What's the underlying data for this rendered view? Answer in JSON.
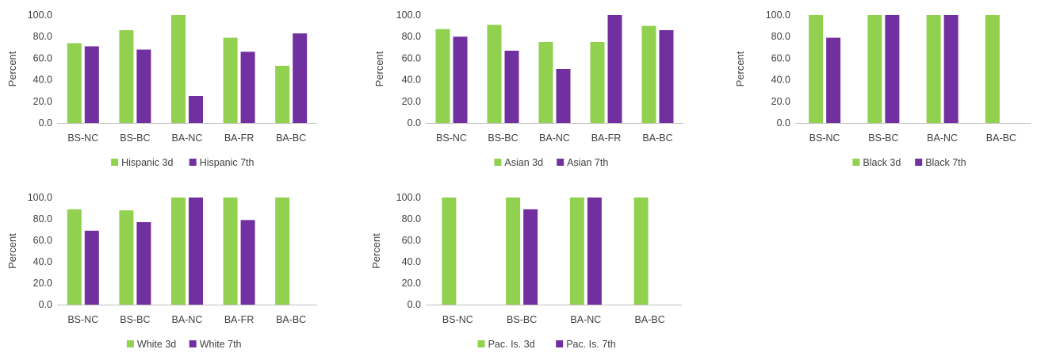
{
  "colors": {
    "series_3d": "#92d050",
    "series_7th": "#7030a0",
    "axis": "#bfbfbf",
    "text": "#404040"
  },
  "chart_data": [
    {
      "type": "bar",
      "ylabel": "Percent",
      "ylim": [
        0,
        100
      ],
      "yticks": [
        "0.0",
        "20.0",
        "40.0",
        "60.0",
        "80.0",
        "100.0"
      ],
      "categories": [
        "BS-NC",
        "BS-BC",
        "BA-NC",
        "BA-FR",
        "BA-BC"
      ],
      "legend_position": "bottom",
      "series": [
        {
          "name": "Hispanic 3d",
          "values": [
            74,
            86,
            100,
            79,
            53
          ]
        },
        {
          "name": "Hispanic 7th",
          "values": [
            71,
            68,
            25,
            66,
            83
          ]
        }
      ]
    },
    {
      "type": "bar",
      "ylabel": "Percent",
      "ylim": [
        0,
        100
      ],
      "yticks": [
        "0.0",
        "20.0",
        "40.0",
        "60.0",
        "80.0",
        "100.0"
      ],
      "categories": [
        "BS-NC",
        "BS-BC",
        "BA-NC",
        "BA-FR",
        "BA-BC"
      ],
      "legend_position": "bottom",
      "series": [
        {
          "name": "Asian 3d",
          "values": [
            87,
            91,
            75,
            75,
            90
          ]
        },
        {
          "name": "Asian 7th",
          "values": [
            80,
            67,
            50,
            100,
            86
          ]
        }
      ]
    },
    {
      "type": "bar",
      "ylabel": "Percent",
      "ylim": [
        0,
        100
      ],
      "yticks": [
        "0.0",
        "20.0",
        "40.0",
        "60.0",
        "80.0",
        "100.0"
      ],
      "categories": [
        "BS-NC",
        "BS-BC",
        "BA-NC",
        "BA-BC"
      ],
      "legend_position": "bottom",
      "series": [
        {
          "name": "Black 3d",
          "values": [
            100,
            100,
            100,
            100
          ]
        },
        {
          "name": "Black 7th",
          "values": [
            79,
            100,
            100,
            null
          ]
        }
      ]
    },
    {
      "type": "bar",
      "ylabel": "Percent",
      "ylim": [
        0,
        100
      ],
      "yticks": [
        "0.0",
        "20.0",
        "40.0",
        "60.0",
        "80.0",
        "100.0"
      ],
      "categories": [
        "BS-NC",
        "BS-BC",
        "BA-NC",
        "BA-FR",
        "BA-BC"
      ],
      "legend_position": "bottom",
      "series": [
        {
          "name": "White 3d",
          "values": [
            89,
            88,
            100,
            100,
            100
          ]
        },
        {
          "name": "White 7th",
          "values": [
            69,
            77,
            100,
            79,
            null
          ]
        }
      ]
    },
    {
      "type": "bar",
      "ylabel": "Percent",
      "ylim": [
        0,
        100
      ],
      "yticks": [
        "0.0",
        "20.0",
        "40.0",
        "60.0",
        "80.0",
        "100.0"
      ],
      "categories": [
        "BS-NC",
        "BS-BC",
        "BA-NC",
        "BA-BC"
      ],
      "legend_position": "bottom",
      "series": [
        {
          "name": "Pac. Is. 3d",
          "values": [
            100,
            100,
            100,
            100
          ]
        },
        {
          "name": "Pac. Is. 7th",
          "values": [
            null,
            89,
            100,
            null
          ]
        }
      ]
    }
  ]
}
